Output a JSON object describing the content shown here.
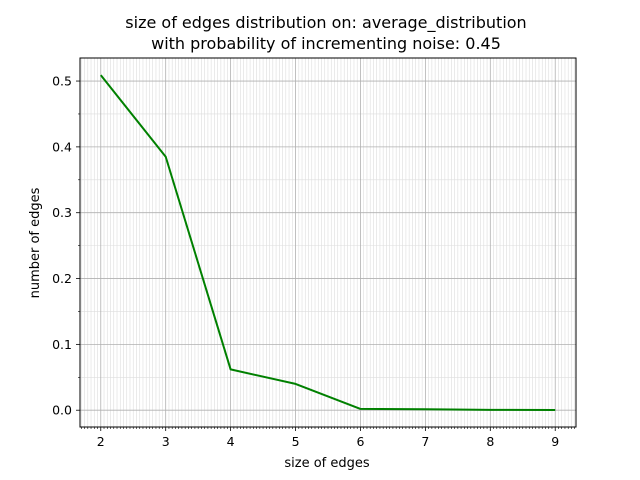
{
  "chart_data": {
    "type": "line",
    "title_line1": "size of edges distribution on: average_distribution",
    "title_line2": "with probability of incrementing noise: 0.45",
    "xlabel": "size of edges",
    "ylabel": "number of edges",
    "xlim": [
      1.68,
      9.32
    ],
    "ylim": [
      -0.0255,
      0.535
    ],
    "xticks": [
      2,
      3,
      4,
      5,
      6,
      7,
      8,
      9
    ],
    "yticks": [
      0.0,
      0.1,
      0.2,
      0.3,
      0.4,
      0.5
    ],
    "xtick_labels": [
      "2",
      "3",
      "4",
      "5",
      "6",
      "7",
      "8",
      "9"
    ],
    "ytick_labels": [
      "0.0",
      "0.1",
      "0.2",
      "0.3",
      "0.4",
      "0.5"
    ],
    "grid": true,
    "minor_grid": true,
    "color": "#008000",
    "x": [
      2,
      3,
      4,
      5,
      6,
      7,
      8,
      9
    ],
    "y": [
      0.509,
      0.385,
      0.062,
      0.04,
      0.002,
      0.0015,
      0.0005,
      0.0003
    ]
  }
}
